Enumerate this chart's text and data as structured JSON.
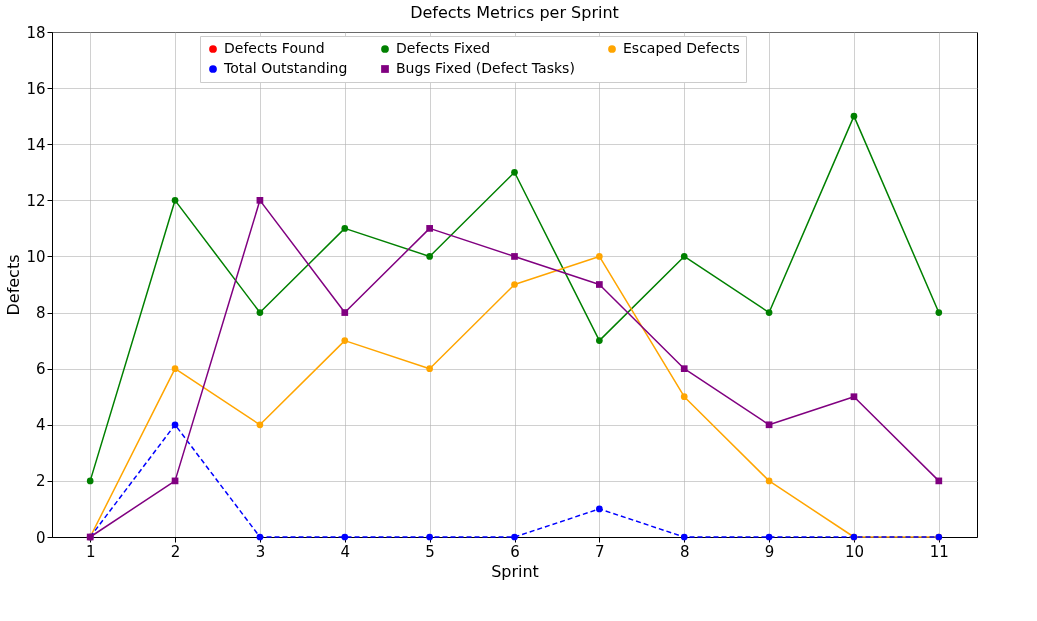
{
  "chart_data": {
    "type": "line",
    "title": "Defects Metrics per Sprint",
    "xlabel": "Sprint",
    "ylabel": "Defects",
    "x": [
      1,
      2,
      3,
      4,
      5,
      6,
      7,
      8,
      9,
      10,
      11
    ],
    "series": [
      {
        "name": "Defects Found",
        "color": "#ff0000",
        "marker": "circle",
        "line_style": "solid",
        "values": [
          null,
          null,
          null,
          null,
          null,
          null,
          null,
          null,
          null,
          null,
          null
        ]
      },
      {
        "name": "Defects Fixed",
        "color": "#008000",
        "marker": "circle",
        "line_style": "solid",
        "values": [
          2,
          12,
          8,
          11,
          10,
          13,
          7,
          10,
          8,
          15,
          8
        ]
      },
      {
        "name": "Escaped Defects",
        "color": "#ffa500",
        "marker": "circle",
        "line_style": "solid",
        "values": [
          0,
          6,
          4,
          7,
          6,
          9,
          10,
          5,
          2,
          0,
          0
        ]
      },
      {
        "name": "Total Outstanding",
        "color": "#0000ff",
        "marker": "circle",
        "line_style": "dashed",
        "values": [
          0,
          4,
          0,
          0,
          0,
          0,
          1,
          0,
          0,
          0,
          0
        ]
      },
      {
        "name": "Bugs Fixed (Defect Tasks)",
        "color": "#800080",
        "marker": "square",
        "line_style": "solid",
        "values": [
          0,
          2,
          12,
          8,
          11,
          10,
          9,
          6,
          4,
          5,
          2
        ]
      }
    ],
    "xlim": [
      0.55,
      11.45
    ],
    "xticks": [
      1,
      2,
      3,
      4,
      5,
      6,
      7,
      8,
      9,
      10,
      11
    ],
    "ylim": [
      0,
      18
    ],
    "yticks": [
      0,
      2,
      4,
      6,
      8,
      10,
      12,
      14,
      16,
      18
    ],
    "grid": true,
    "legend": "top"
  }
}
